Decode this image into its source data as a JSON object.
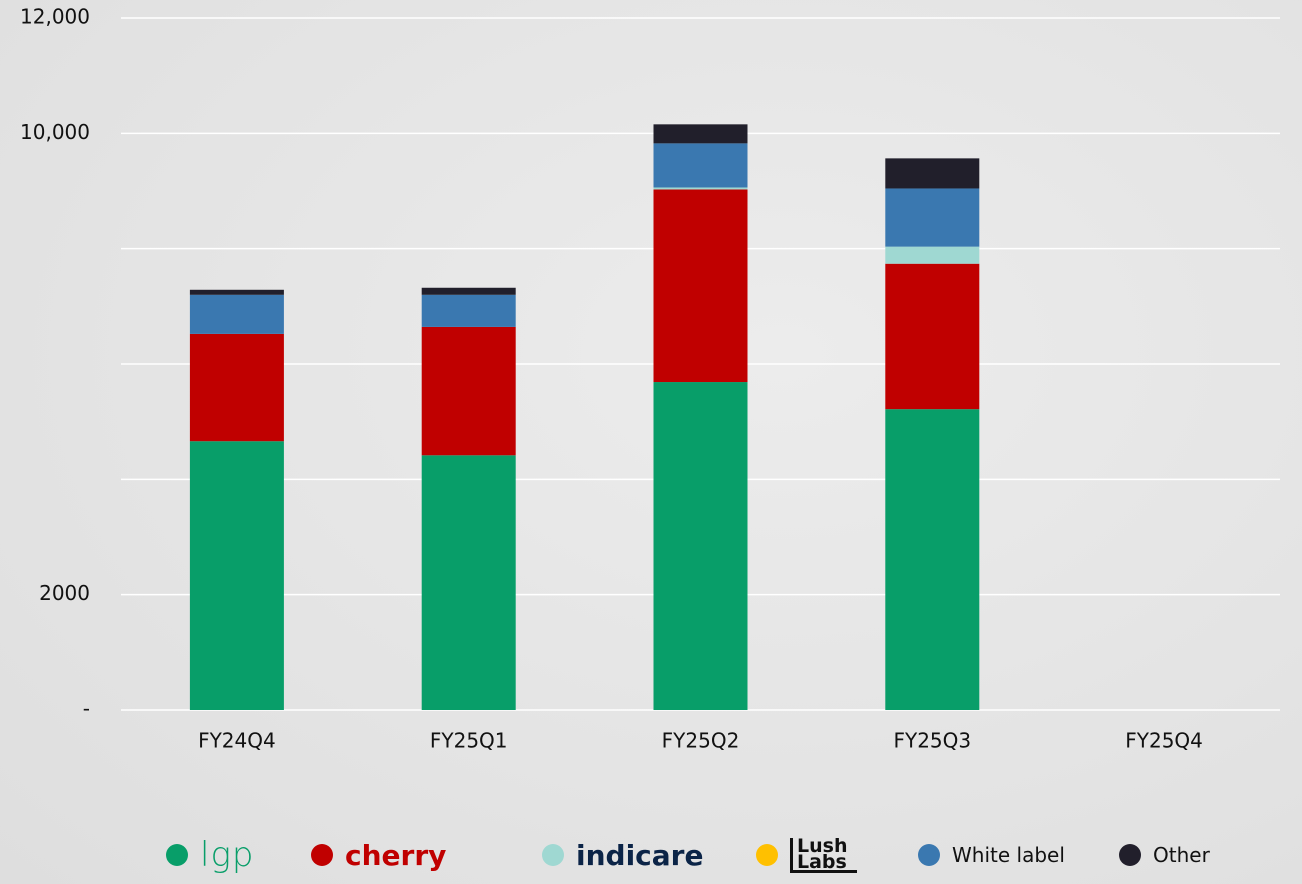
{
  "chart_data": {
    "type": "stacked_bar",
    "categories": [
      "FY24Q4",
      "FY25Q1",
      "FY25Q2",
      "FY25Q3",
      "FY25Q4"
    ],
    "series": [
      {
        "name": "lgp",
        "color": "#089e69",
        "values": [
          4661,
          4417,
          5687,
          5217,
          null
        ]
      },
      {
        "name": "cherry",
        "color": "#c00000",
        "values": [
          1861,
          2226,
          3339,
          2522,
          null
        ]
      },
      {
        "name": "indicare",
        "color": "#9fd8d2",
        "values": [
          0,
          0,
          35,
          296,
          null
        ]
      },
      {
        "name": "Lush Labs",
        "color": "#ffc000",
        "values": [
          0,
          0,
          0,
          0,
          null
        ]
      },
      {
        "name": "White label",
        "color": "#3a78b0",
        "values": [
          678,
          557,
          765,
          1009,
          null
        ]
      },
      {
        "name": "Other",
        "color": "#211f2b",
        "values": [
          87,
          122,
          330,
          522,
          null
        ]
      }
    ],
    "ylim": [
      0,
      12000
    ],
    "yticks": [
      {
        "value": 0,
        "label": "-"
      },
      2000,
      {
        "value": 4000,
        "label": null
      },
      {
        "value": 6000,
        "label": null
      },
      {
        "value": 8000,
        "label": null
      },
      {
        "value": 10000,
        "label": "10,000"
      },
      {
        "value": 12000,
        "label": "12,000"
      }
    ],
    "grid": true
  }
}
